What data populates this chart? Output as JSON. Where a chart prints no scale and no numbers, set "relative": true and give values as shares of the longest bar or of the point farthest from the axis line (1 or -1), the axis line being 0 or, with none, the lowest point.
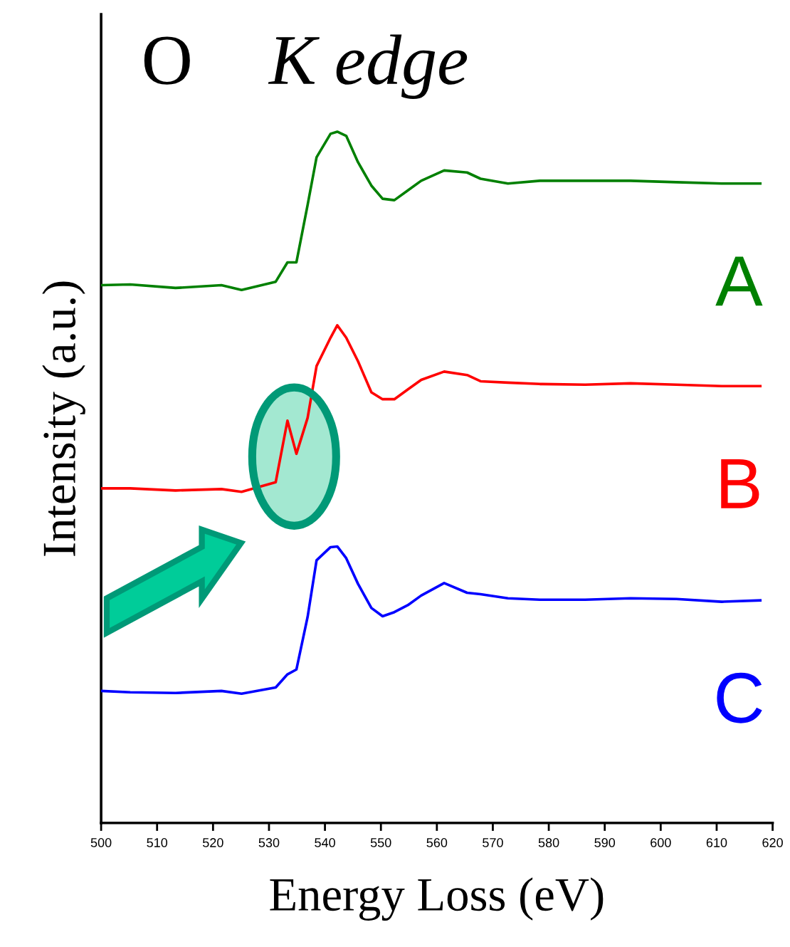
{
  "chart_data": {
    "type": "line",
    "title": "O K edge",
    "xlabel": "Energy Loss (eV)",
    "ylabel": "Intensity (a.u.)",
    "relative": true,
    "grid": false,
    "legend": false,
    "marker": "none",
    "line_style": "solid",
    "xlim": [
      500,
      620
    ],
    "xticks": [
      500,
      510,
      520,
      530,
      540,
      550,
      560,
      570,
      580,
      590,
      600,
      610,
      620
    ],
    "x": [
      500,
      505.2,
      513.3,
      521.5,
      525.1,
      531.2,
      533.3,
      534.9,
      536.9,
      538.5,
      541.0,
      542.2,
      543.8,
      545.9,
      548.3,
      550.3,
      552.4,
      554.8,
      557.2,
      561.3,
      565.4,
      567.8,
      572.7,
      578.4,
      586.5,
      594.6,
      602.8,
      610.9,
      617.8
    ],
    "series": [
      {
        "name": "A",
        "color": "#008000",
        "values": [
          0.778,
          0.779,
          0.774,
          0.778,
          0.771,
          0.783,
          0.811,
          0.811,
          0.894,
          0.963,
          0.997,
          1.0,
          0.994,
          0.956,
          0.922,
          0.903,
          0.901,
          0.915,
          0.929,
          0.944,
          0.941,
          0.932,
          0.925,
          0.929,
          0.929,
          0.929,
          0.927,
          0.925,
          0.925
        ]
      },
      {
        "name": "B",
        "color": "#ff0000",
        "values": [
          0.484,
          0.484,
          0.481,
          0.483,
          0.479,
          0.493,
          0.582,
          0.534,
          0.586,
          0.661,
          0.702,
          0.72,
          0.702,
          0.668,
          0.623,
          0.613,
          0.613,
          0.627,
          0.641,
          0.653,
          0.648,
          0.639,
          0.637,
          0.635,
          0.634,
          0.636,
          0.634,
          0.632,
          0.632
        ]
      },
      {
        "name": "C",
        "color": "#0000ff",
        "values": [
          0.191,
          0.189,
          0.188,
          0.191,
          0.187,
          0.196,
          0.215,
          0.222,
          0.298,
          0.38,
          0.399,
          0.4,
          0.383,
          0.346,
          0.311,
          0.299,
          0.305,
          0.315,
          0.329,
          0.347,
          0.333,
          0.331,
          0.325,
          0.323,
          0.323,
          0.325,
          0.324,
          0.32,
          0.322
        ]
      }
    ]
  }
}
